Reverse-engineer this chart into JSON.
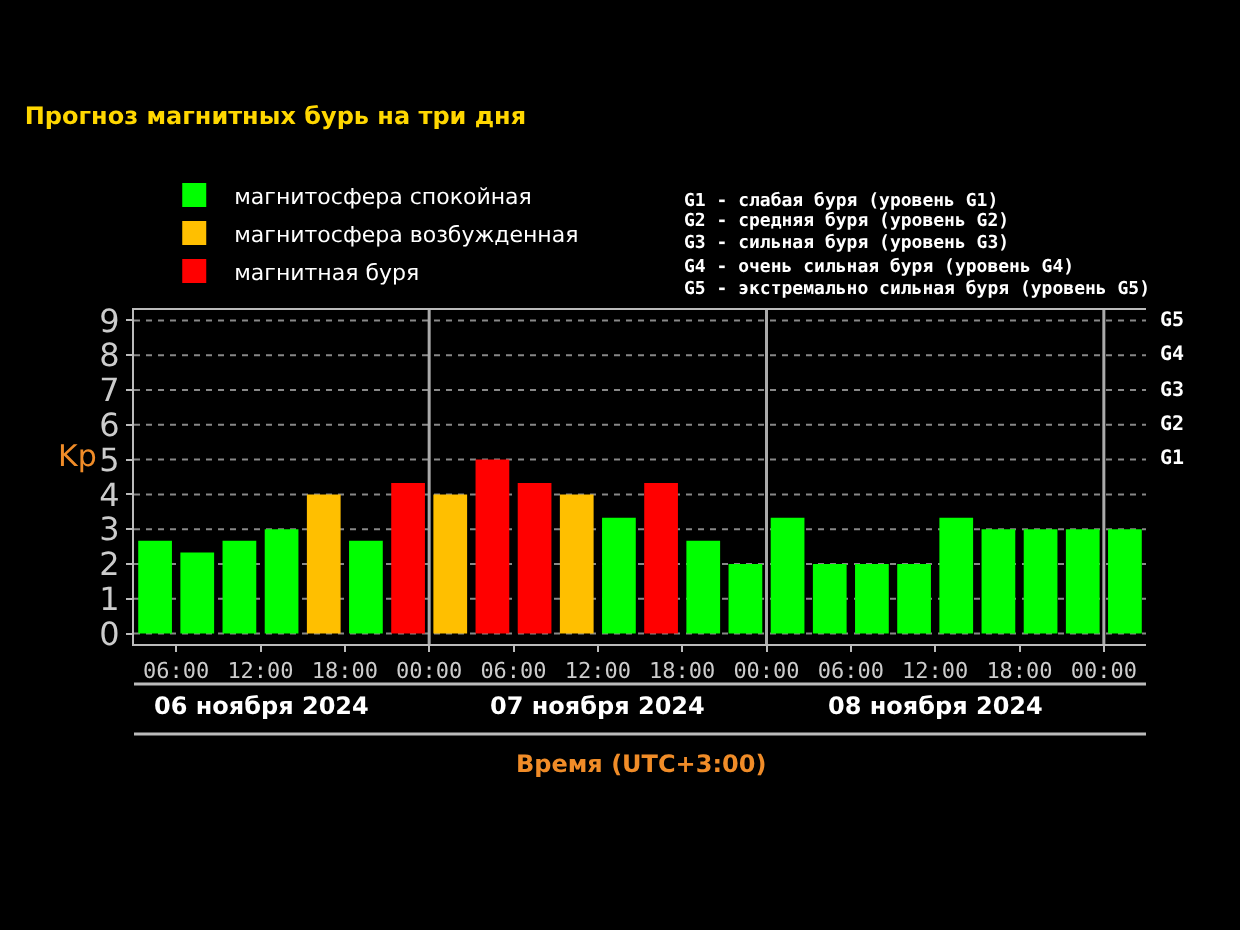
{
  "chart_data": {
    "type": "bar",
    "title": "Прогноз магнитных бурь на три дня",
    "xlabel": "Время (UTC+3:00)",
    "ylabel": "Kp",
    "x": [
      "2024-11-06T04:30",
      "2024-11-06T07:30",
      "2024-11-06T10:30",
      "2024-11-06T13:30",
      "2024-11-06T16:30",
      "2024-11-06T19:30",
      "2024-11-06T22:30",
      "2024-11-07T01:30",
      "2024-11-07T04:30",
      "2024-11-07T07:30",
      "2024-11-07T10:30",
      "2024-11-07T13:30",
      "2024-11-07T16:30",
      "2024-11-07T19:30",
      "2024-11-07T22:30",
      "2024-11-08T01:30",
      "2024-11-08T04:30",
      "2024-11-08T07:30",
      "2024-11-08T10:30",
      "2024-11-08T13:30",
      "2024-11-08T16:30",
      "2024-11-08T19:30",
      "2024-11-08T22:30",
      "2024-11-09T01:30"
    ],
    "series": [
      {
        "name": "магнитосфера спокойная",
        "color": "#00ff00",
        "values": [
          2.67,
          2.33,
          2.67,
          3,
          null,
          2.67,
          null,
          null,
          null,
          null,
          null,
          3.33,
          null,
          2.67,
          2,
          3.33,
          2,
          2,
          2,
          3.33,
          3,
          3,
          3,
          3
        ]
      },
      {
        "name": "магнитосфера возбужденная",
        "color": "#ffbf00",
        "values": [
          null,
          null,
          null,
          null,
          4,
          null,
          null,
          4,
          null,
          null,
          4,
          null,
          null,
          null,
          null,
          null,
          null,
          null,
          null,
          null,
          null,
          null,
          null,
          null
        ]
      },
      {
        "name": "магнитная буря",
        "color": "#ff0000",
        "values": [
          null,
          null,
          null,
          null,
          null,
          null,
          4.33,
          null,
          5,
          4.33,
          null,
          null,
          4.33,
          null,
          null,
          null,
          null,
          null,
          null,
          null,
          null,
          null,
          null,
          null
        ]
      }
    ],
    "xlim": [
      "2024-11-06T03:00",
      "2024-11-09T03:00"
    ],
    "xticks": [
      {
        "value": "2024-11-06T06:00",
        "label": "06:00"
      },
      {
        "value": "2024-11-06T12:00",
        "label": "12:00"
      },
      {
        "value": "2024-11-06T18:00",
        "label": "18:00"
      },
      {
        "value": "2024-11-07T00:00",
        "label": "00:00"
      },
      {
        "value": "2024-11-07T06:00",
        "label": "06:00"
      },
      {
        "value": "2024-11-07T12:00",
        "label": "12:00"
      },
      {
        "value": "2024-11-07T18:00",
        "label": "18:00"
      },
      {
        "value": "2024-11-08T00:00",
        "label": "00:00"
      },
      {
        "value": "2024-11-08T06:00",
        "label": "06:00"
      },
      {
        "value": "2024-11-08T12:00",
        "label": "12:00"
      },
      {
        "value": "2024-11-08T18:00",
        "label": "18:00"
      },
      {
        "value": "2024-11-09T00:00",
        "label": "00:00"
      }
    ],
    "ylim": [
      -0.3,
      9.3
    ],
    "yticks": [
      0,
      1,
      2,
      3,
      4,
      5,
      6,
      7,
      8,
      9
    ],
    "ref_lines": [
      {
        "axis": "x",
        "value": "2024-11-07T00:00",
        "color": "#aaaaaa"
      },
      {
        "axis": "x",
        "value": "2024-11-08T00:00",
        "color": "#aaaaaa"
      },
      {
        "axis": "x",
        "value": "2024-11-09T00:00",
        "color": "#aaaaaa"
      }
    ],
    "annotations": [
      "G1",
      "G2",
      "G3",
      "G4",
      "G5",
      "G1 - слабая буря (уровень G1)",
      "G2 - средняя буря (уровень G2)",
      "G3 - сильная буря (уровень G3)",
      "G4 - очень сильная буря (уровень G4)",
      "G5 - экстремально сильная буря (уровень G5)",
      "06 ноября 2024",
      "07 ноября 2024",
      "08 ноября 2024"
    ],
    "grid": "y",
    "legend": "top left"
  }
}
